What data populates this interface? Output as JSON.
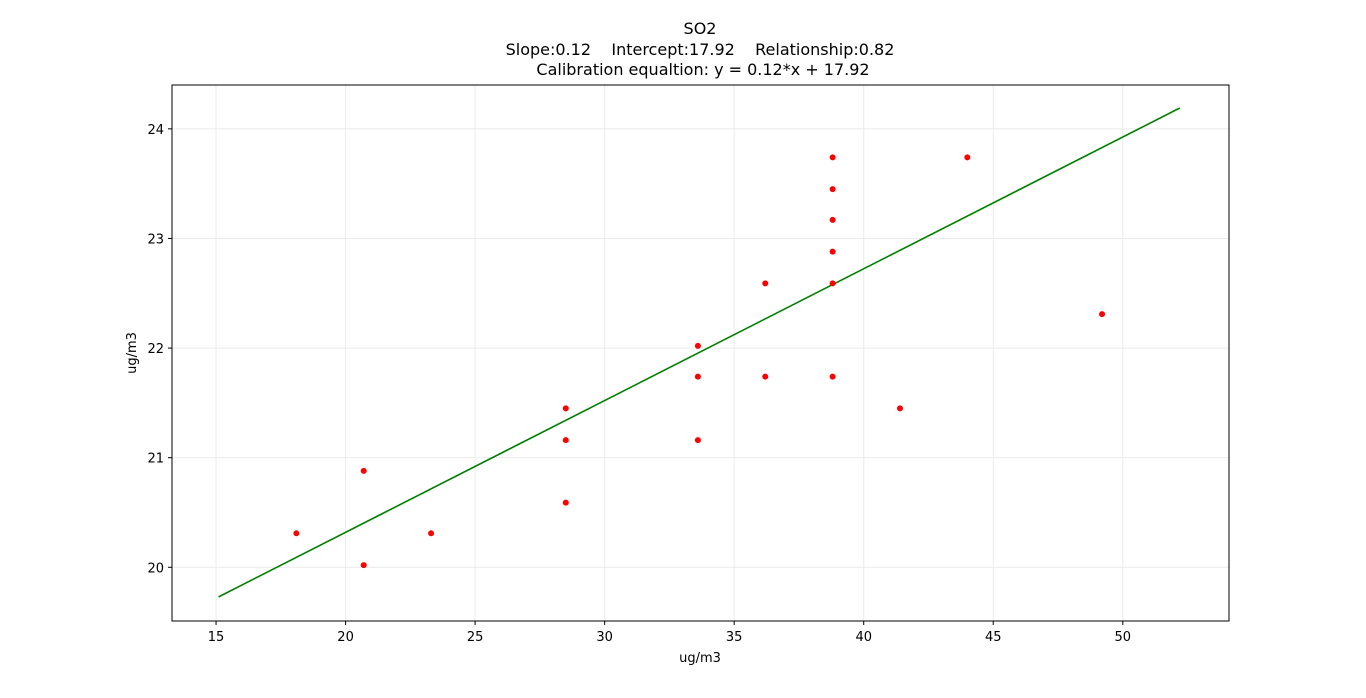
{
  "chart_data": {
    "type": "scatter",
    "title": "SO2",
    "subtitle_line1": "Slope:0.12    Intercept:17.92    Relationship:0.82",
    "subtitle_line2": "Calibration equaltion: y = 0.12*x + 17.92",
    "xlabel": "ug/m3",
    "ylabel": "ug/m3",
    "xlim": [
      13.3,
      54.1
    ],
    "ylim": [
      19.51,
      24.4
    ],
    "xticks": [
      15,
      20,
      25,
      30,
      35,
      40,
      45,
      50
    ],
    "yticks": [
      20,
      21,
      22,
      23,
      24
    ],
    "grid": true,
    "points": [
      {
        "x": 18.1,
        "y": 20.31
      },
      {
        "x": 20.7,
        "y": 20.88
      },
      {
        "x": 20.7,
        "y": 20.02
      },
      {
        "x": 23.3,
        "y": 20.31
      },
      {
        "x": 28.5,
        "y": 21.45
      },
      {
        "x": 28.5,
        "y": 21.16
      },
      {
        "x": 28.5,
        "y": 20.59
      },
      {
        "x": 33.6,
        "y": 22.02
      },
      {
        "x": 33.6,
        "y": 21.74
      },
      {
        "x": 33.6,
        "y": 21.16
      },
      {
        "x": 36.2,
        "y": 22.59
      },
      {
        "x": 36.2,
        "y": 21.74
      },
      {
        "x": 38.8,
        "y": 23.74
      },
      {
        "x": 38.8,
        "y": 23.45
      },
      {
        "x": 38.8,
        "y": 23.17
      },
      {
        "x": 38.8,
        "y": 22.88
      },
      {
        "x": 38.8,
        "y": 22.59
      },
      {
        "x": 38.8,
        "y": 21.74
      },
      {
        "x": 41.4,
        "y": 21.45
      },
      {
        "x": 44.0,
        "y": 23.74
      },
      {
        "x": 49.2,
        "y": 22.31
      }
    ],
    "fit_line": {
      "x": [
        15.1,
        52.2
      ],
      "y": [
        19.73,
        24.19
      ]
    },
    "colors": {
      "points": "#ff0000",
      "line": "#008000",
      "grid": "#ebebeb",
      "axis": "#000000"
    }
  }
}
